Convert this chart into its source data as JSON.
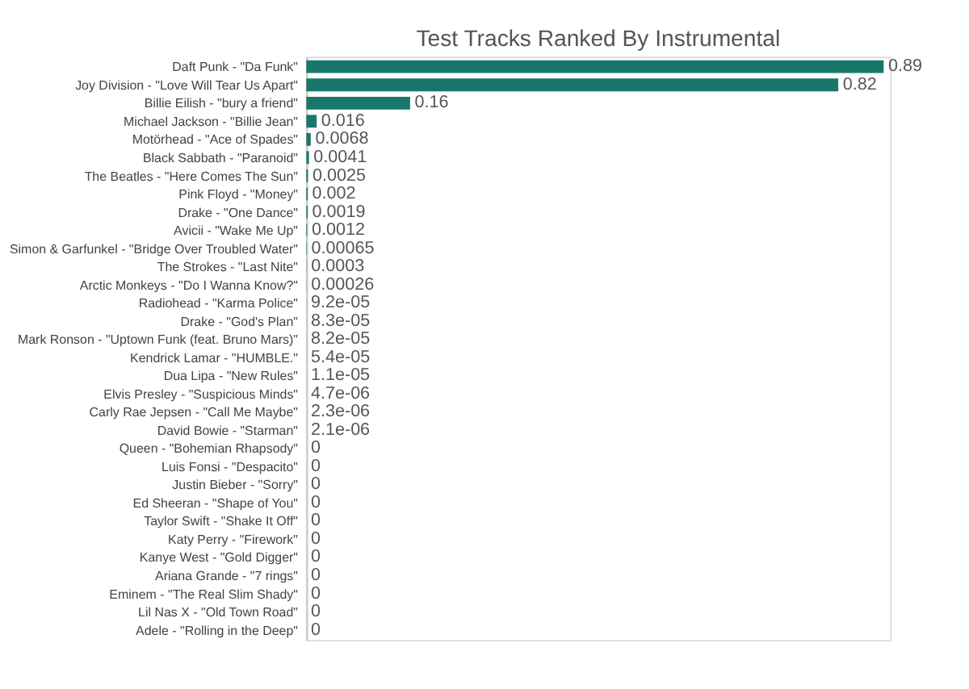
{
  "chart_data": {
    "type": "bar",
    "orientation": "horizontal",
    "title": "Test Tracks Ranked By Instrumental",
    "categories": [
      "Daft Punk - \"Da Funk\"",
      "Joy Division - \"Love Will Tear Us Apart\"",
      "Billie Eilish - \"bury a friend\"",
      "Michael Jackson - \"Billie Jean\"",
      "Motörhead - \"Ace of Spades\"",
      "Black Sabbath - \"Paranoid\"",
      "The Beatles - \"Here Comes The Sun\"",
      "Pink Floyd - \"Money\"",
      "Drake - \"One Dance\"",
      "Avicii - \"Wake Me Up\"",
      "Simon & Garfunkel - \"Bridge Over Troubled Water\"",
      "The Strokes - \"Last Nite\"",
      "Arctic Monkeys - \"Do I Wanna Know?\"",
      "Radiohead - \"Karma Police\"",
      "Drake - \"God's Plan\"",
      "Mark Ronson - \"Uptown Funk (feat. Bruno Mars)\"",
      "Kendrick Lamar - \"HUMBLE.\"",
      "Dua Lipa - \"New Rules\"",
      "Elvis Presley - \"Suspicious Minds\"",
      "Carly Rae Jepsen - \"Call Me Maybe\"",
      "David Bowie - \"Starman\"",
      "Queen - \"Bohemian Rhapsody\"",
      "Luis Fonsi - \"Despacito\"",
      "Justin Bieber - \"Sorry\"",
      "Ed Sheeran - \"Shape of You\"",
      "Taylor Swift - \"Shake It Off\"",
      "Katy Perry - \"Firework\"",
      "Kanye West - \"Gold Digger\"",
      "Ariana Grande - \"7 rings\"",
      "Eminem - \"The Real Slim Shady\"",
      "Lil Nas X - \"Old Town Road\"",
      "Adele - \"Rolling in the Deep\""
    ],
    "values": [
      0.89,
      0.82,
      0.16,
      0.016,
      0.0068,
      0.0041,
      0.0025,
      0.002,
      0.0019,
      0.0012,
      0.00065,
      0.0003,
      0.00026,
      9.2e-05,
      8.3e-05,
      8.2e-05,
      5.4e-05,
      1.1e-05,
      4.7e-06,
      2.3e-06,
      2.1e-06,
      0,
      0,
      0,
      0,
      0,
      0,
      0,
      0,
      0,
      0,
      0
    ],
    "value_labels": [
      "0.89",
      "0.82",
      "0.16",
      "0.016",
      "0.0068",
      "0.0041",
      "0.0025",
      "0.002",
      "0.0019",
      "0.0012",
      "0.00065",
      "0.0003",
      "0.00026",
      "9.2e-05",
      "8.3e-05",
      "8.2e-05",
      "5.4e-05",
      "1.1e-05",
      "4.7e-06",
      "2.3e-06",
      "2.1e-06",
      "0",
      "0",
      "0",
      "0",
      "0",
      "0",
      "0",
      "0",
      "0",
      "0",
      "0"
    ],
    "color": "#18776b",
    "tick_labels": "y"
  }
}
